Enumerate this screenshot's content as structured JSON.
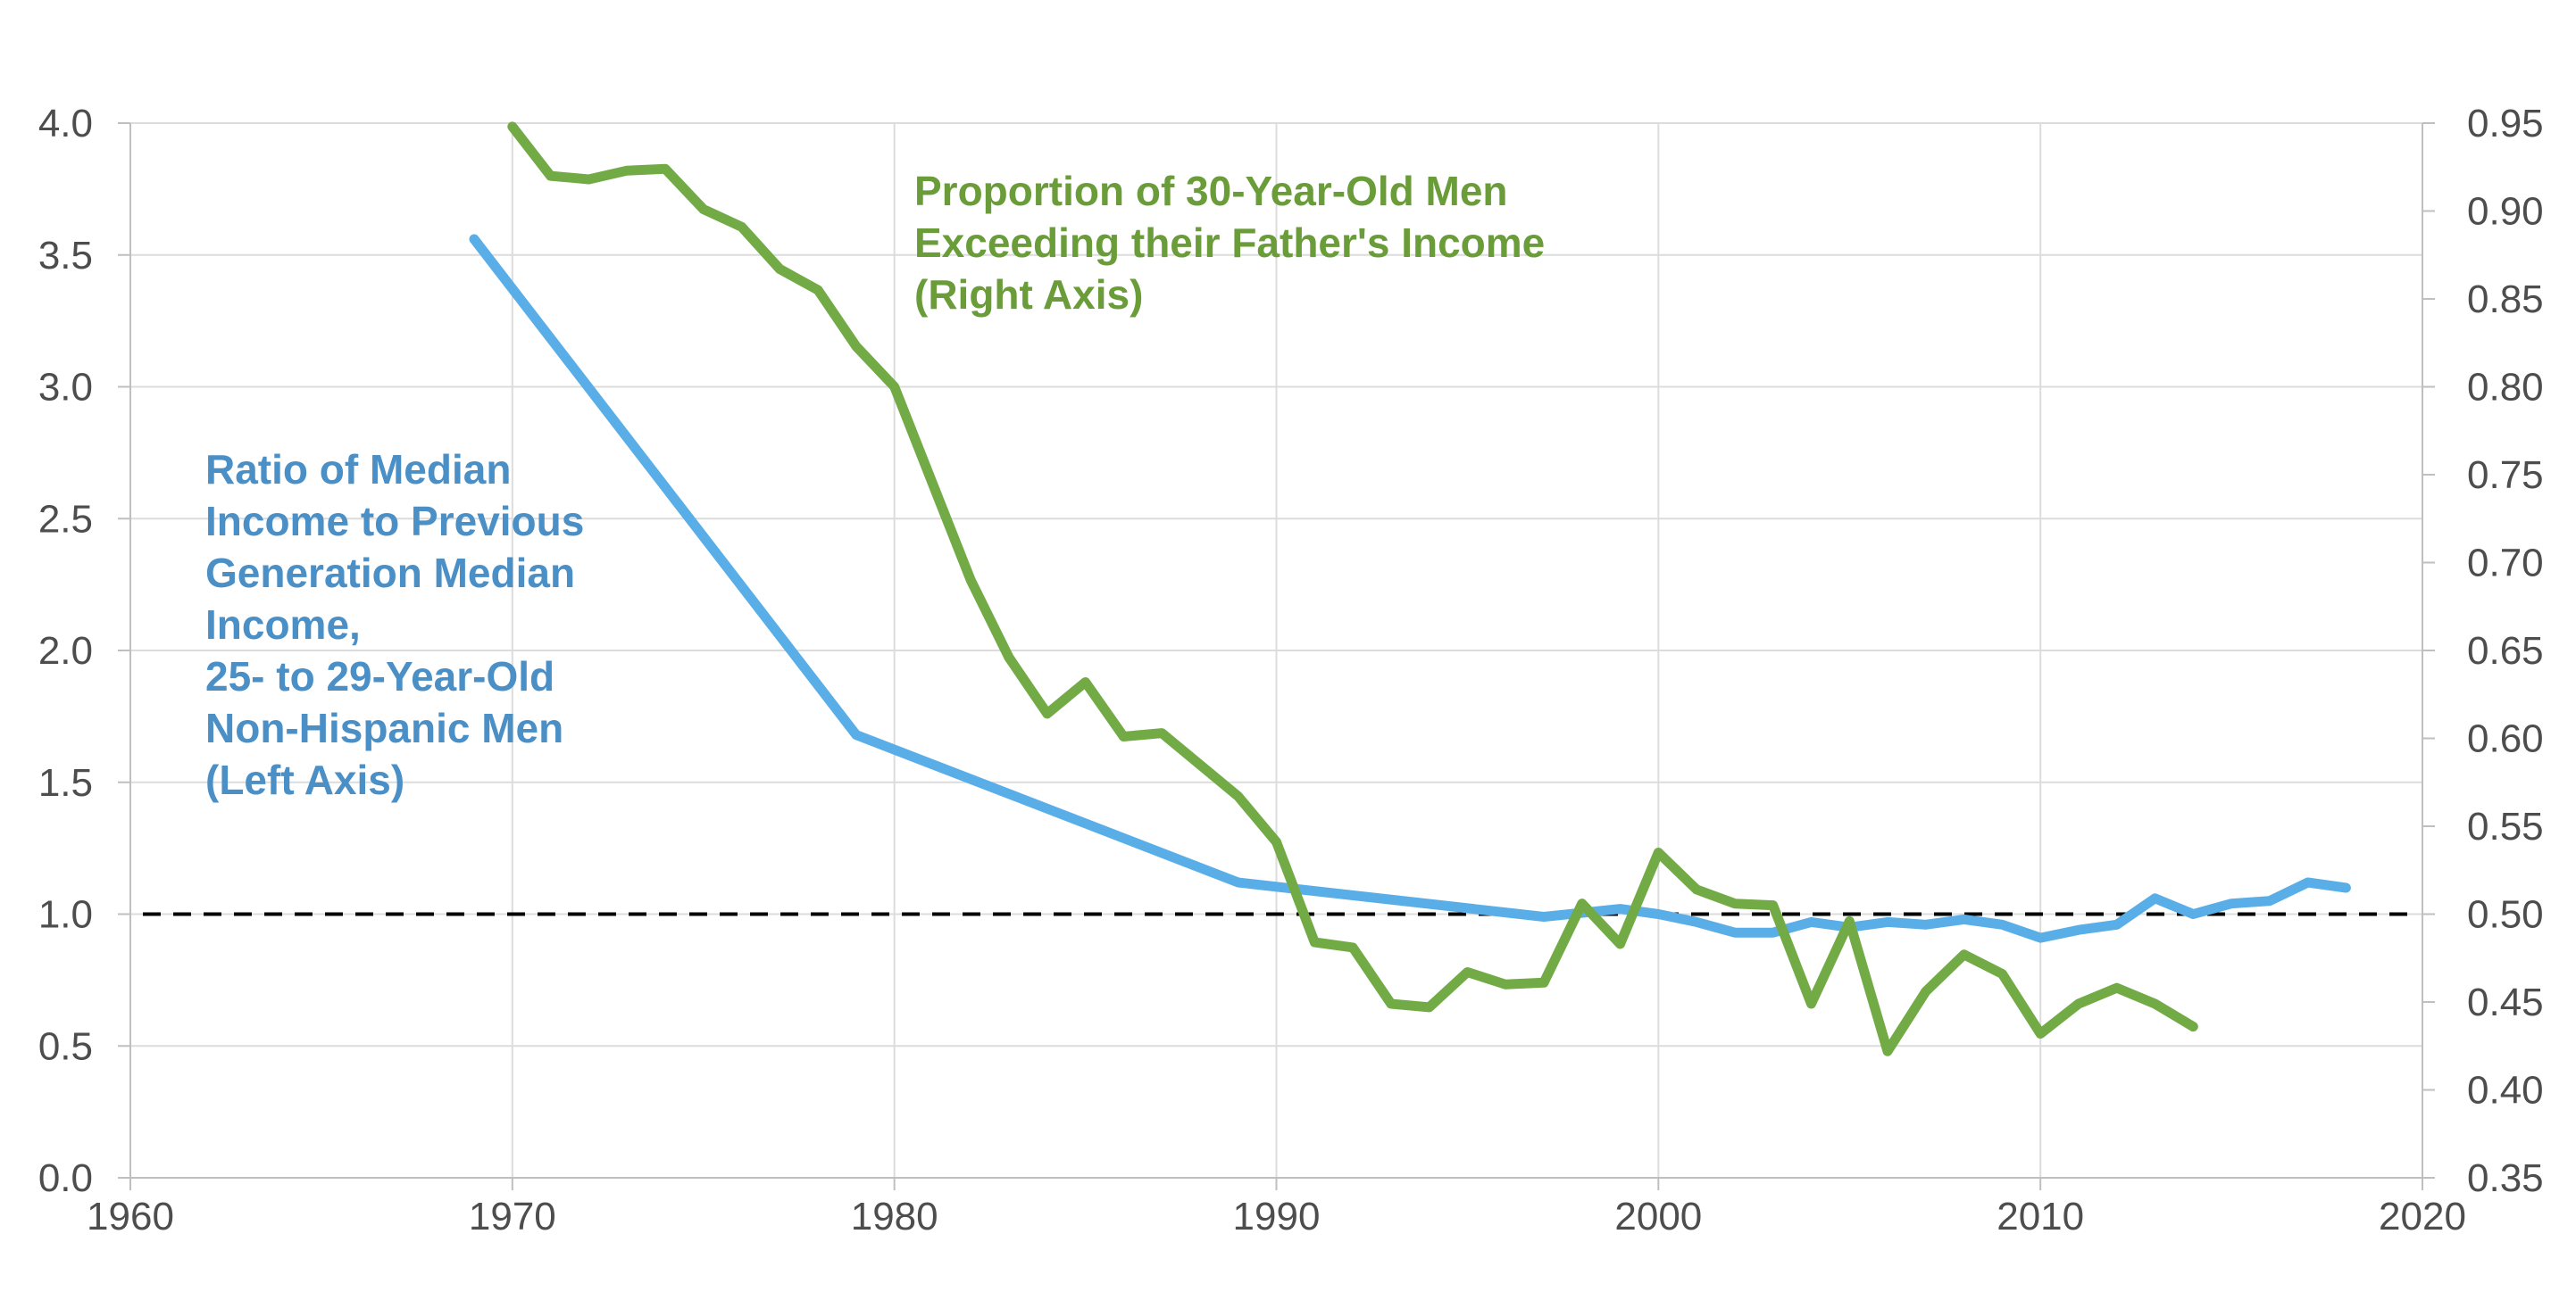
{
  "chart_data": {
    "type": "line",
    "title": "",
    "xlabel": "",
    "ylabel": "",
    "y2label": "",
    "xlim": [
      1960,
      2020
    ],
    "ylim": [
      0,
      4
    ],
    "y2lim": [
      0.35,
      0.95
    ],
    "x_ticks": [
      "1960",
      "1970",
      "1980",
      "1990",
      "2000",
      "2010",
      "2020"
    ],
    "y_ticks": [
      "0.0",
      "0.5",
      "1.0",
      "1.5",
      "2.0",
      "2.5",
      "3.0",
      "3.5",
      "4.0"
    ],
    "y2_ticks": [
      "0.35",
      "0.40",
      "0.45",
      "0.50",
      "0.55",
      "0.60",
      "0.65",
      "0.70",
      "0.75",
      "0.80",
      "0.85",
      "0.90",
      "0.95"
    ],
    "grid": true,
    "reference_line": {
      "axis": "left",
      "y": 1.0,
      "style": "dashed",
      "color": "#000000"
    },
    "series": [
      {
        "key": "blue",
        "axis": "left",
        "color": "#5aaee8",
        "x": [
          1969,
          1979,
          1989,
          1997,
          1999,
          2000,
          2001,
          2002,
          2003,
          2004,
          2005,
          2006,
          2007,
          2008,
          2009,
          2010,
          2011,
          2012,
          2013,
          2014,
          2015,
          2016,
          2017,
          2018
        ],
        "y": [
          3.56,
          1.68,
          1.12,
          0.99,
          1.02,
          1.0,
          0.97,
          0.93,
          0.93,
          0.97,
          0.95,
          0.97,
          0.96,
          0.98,
          0.96,
          0.91,
          0.94,
          0.96,
          1.06,
          1.0,
          1.04,
          1.05,
          1.12,
          1.1
        ]
      },
      {
        "key": "green",
        "axis": "right",
        "color": "#72ab46",
        "x": [
          1970,
          1971,
          1972,
          1973,
          1974,
          1975,
          1976,
          1977,
          1978,
          1979,
          1980,
          1981,
          1982,
          1983,
          1984,
          1985,
          1986,
          1987,
          1988,
          1989,
          1990,
          1991,
          1992,
          1993,
          1994,
          1995,
          1996,
          1997,
          1998,
          1999,
          2000,
          2001,
          2002,
          2003,
          2004,
          2005,
          2006,
          2007,
          2008,
          2009,
          2010,
          2011,
          2012,
          2013,
          2014
        ],
        "y": [
          0.948,
          0.92,
          0.918,
          0.923,
          0.924,
          0.901,
          0.891,
          0.867,
          0.855,
          0.823,
          0.8,
          0.745,
          0.69,
          0.646,
          0.614,
          0.632,
          0.601,
          0.603,
          0.585,
          0.567,
          0.541,
          0.484,
          0.481,
          0.449,
          0.447,
          0.467,
          0.46,
          0.461,
          0.506,
          0.483,
          0.535,
          0.514,
          0.506,
          0.505,
          0.449,
          0.496,
          0.422,
          0.456,
          0.477,
          0.466,
          0.432,
          0.449,
          0.458,
          0.449,
          0.436
        ]
      }
    ],
    "annotations": {
      "blue": [
        "Ratio of Median",
        "Income to Previous",
        "Generation Median",
        "Income,",
        "25- to 29-Year-Old",
        "Non-Hispanic Men",
        "(Left Axis)"
      ],
      "green": [
        "Proportion of 30-Year-Old Men",
        "Exceeding their Father's Income",
        "(Right Axis)"
      ]
    }
  }
}
